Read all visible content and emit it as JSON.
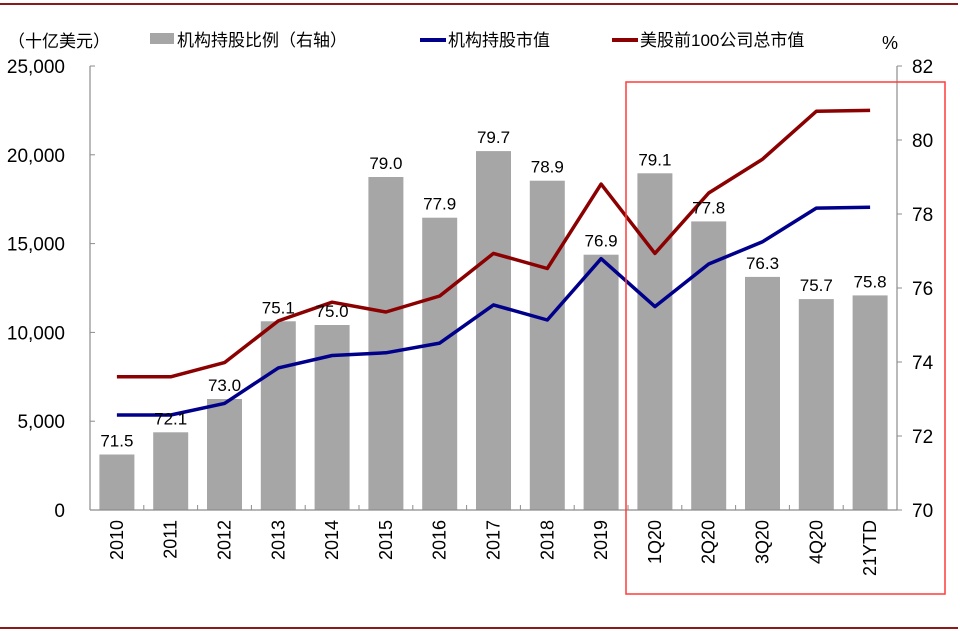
{
  "chart_data": {
    "type": "bar+line",
    "left_axis_unit": "（十亿美元）",
    "right_axis_unit": "%",
    "categories": [
      "2010",
      "2011",
      "2012",
      "2013",
      "2014",
      "2015",
      "2016",
      "2017",
      "2018",
      "2019",
      "1Q20",
      "2Q20",
      "3Q20",
      "4Q20",
      "21YTD"
    ],
    "left_ticks": [
      "0",
      "5,000",
      "10,000",
      "15,000",
      "20,000",
      "25,000"
    ],
    "right_ticks": [
      "70",
      "72",
      "74",
      "76",
      "78",
      "80",
      "82"
    ],
    "left_ylim": [
      0,
      25000
    ],
    "right_ylim": [
      70,
      82
    ],
    "series": [
      {
        "name": "机构持股比例（右轴）",
        "kind": "bar",
        "axis": "right",
        "color": "#a6a6a6",
        "values": [
          71.5,
          72.1,
          73.0,
          75.1,
          75.0,
          79.0,
          77.9,
          79.7,
          78.9,
          76.9,
          79.1,
          77.8,
          76.3,
          75.7,
          75.8
        ],
        "labels": [
          "71.5",
          "72.1",
          "73.0",
          "75.1",
          "75.0",
          "79.0",
          "77.9",
          "79.7",
          "78.9",
          "76.9",
          "79.1",
          "77.8",
          "76.3",
          "75.7",
          "75.8"
        ]
      },
      {
        "name": "机构持股市值",
        "kind": "line",
        "axis": "left",
        "color": "#00008b",
        "values": [
          5350,
          5350,
          6000,
          8000,
          8700,
          8850,
          9400,
          11550,
          10700,
          14150,
          11450,
          13850,
          15100,
          17000,
          17050
        ]
      },
      {
        "name": "美股前100公司总市值",
        "kind": "line",
        "axis": "left",
        "color": "#8b0000",
        "values": [
          7500,
          7500,
          8300,
          10650,
          11700,
          11150,
          12050,
          14450,
          13600,
          18350,
          14450,
          17850,
          19750,
          22450,
          22500
        ]
      }
    ],
    "highlight": {
      "from": "1Q20",
      "to": "21YTD",
      "color": "#ff3b3b"
    },
    "legend_position": "top",
    "grid": false
  }
}
